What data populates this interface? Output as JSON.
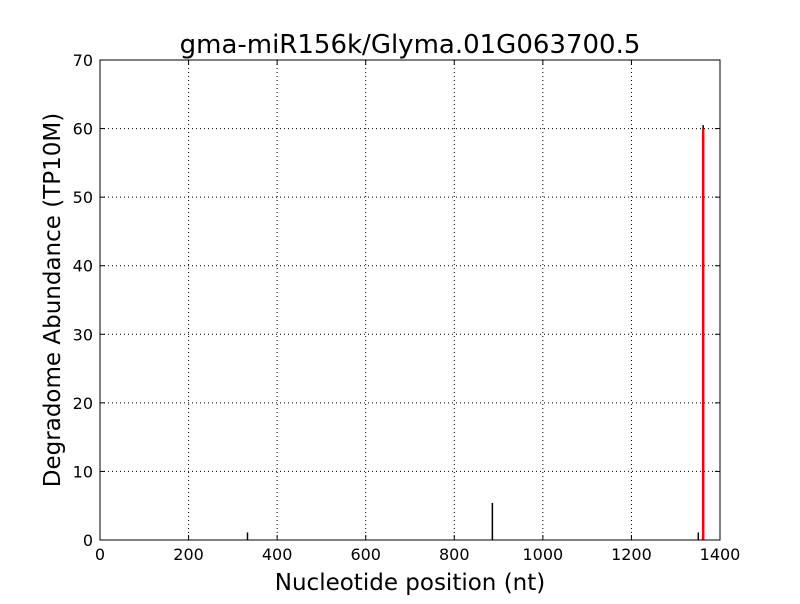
{
  "chart_data": {
    "type": "bar",
    "title": "gma-miR156k/Glyma.01G063700.5",
    "xlabel": "Nucleotide position (nt)",
    "ylabel": "Degradome Abundance (TP10M)",
    "xlim": [
      0,
      1400
    ],
    "ylim": [
      0,
      70
    ],
    "xticks": [
      0,
      200,
      400,
      600,
      800,
      1000,
      1200,
      1400
    ],
    "yticks": [
      0,
      10,
      20,
      30,
      40,
      50,
      60,
      70
    ],
    "grid": true,
    "series": [
      {
        "color": "#000000",
        "x": [
          333,
          886,
          1351,
          1362
        ],
        "values": [
          1.1,
          5.4,
          1.1,
          60.5
        ]
      },
      {
        "color": "#ff0000",
        "x": [
          1362
        ],
        "values": [
          60
        ]
      }
    ]
  }
}
